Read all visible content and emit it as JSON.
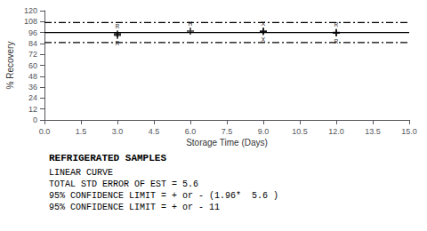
{
  "chart_data": {
    "type": "scatter",
    "xlabel": "Storage Time (Days)",
    "ylabel": "% Recovery",
    "xlim": [
      0.0,
      15.0
    ],
    "ylim": [
      0,
      120
    ],
    "xticks": [
      {
        "value": 0.0,
        "label": "0.0"
      },
      1.5,
      {
        "value": 3.0,
        "label": "3.0"
      },
      4.5,
      {
        "value": 6.0,
        "label": "6.0"
      },
      7.5,
      {
        "value": 9.0,
        "label": "9.0"
      },
      10.5,
      {
        "value": 12.0,
        "label": "12.0"
      },
      13.5,
      {
        "value": 15.0,
        "label": "15.0"
      }
    ],
    "yticks": [
      0,
      12,
      24,
      36,
      48,
      60,
      72,
      84,
      96,
      108,
      120
    ],
    "grid": false,
    "series": [
      {
        "type": "line",
        "line_style": "solid",
        "color": "#000000",
        "x": [
          0.0,
          15.0
        ],
        "values": [
          96.0,
          96.0
        ]
      },
      {
        "type": "line",
        "line_style": "dashdot",
        "color": "#000000",
        "x": [
          0.0,
          15.0
        ],
        "values": [
          107.0,
          107.0
        ]
      },
      {
        "type": "line",
        "line_style": "dashdot",
        "color": "#000000",
        "x": [
          0.0,
          15.0
        ],
        "values": [
          85.0,
          85.0
        ]
      },
      {
        "type": "scatter",
        "marker": "plus",
        "color": "#000000",
        "x": [
          3.0,
          3.0,
          6.0,
          9.0,
          9.0,
          12.0,
          12.0
        ],
        "values": [
          94.5,
          93.0,
          97.5,
          97.5,
          97.0,
          96.0,
          95.5
        ],
        "labels": [
          "R",
          "R",
          "H",
          "X",
          "X",
          "R",
          "R"
        ]
      }
    ],
    "text_block": [
      "REFRIGERATED SAMPLES",
      "LINEAR CURVE",
      "TOTAL STD ERROR OF EST = 5.6",
      "95% CONFIDENCE LIMIT = + or - (1.96*  5.6 )",
      "95% CONFIDENCE LIMIT = + or - 11"
    ]
  }
}
